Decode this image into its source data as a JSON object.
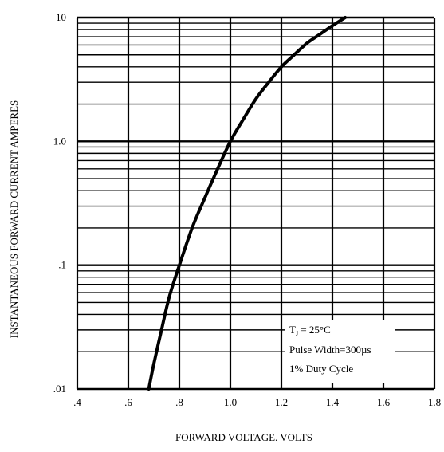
{
  "chart_data": {
    "type": "line",
    "xlabel": "FORWARD VOLTAGE. VOLTS",
    "ylabel": "INSTANTANEOUS FORWARD CURRENT AMPERES",
    "x_scale": "linear",
    "y_scale": "log",
    "xlim": [
      0.4,
      1.8
    ],
    "ylim": [
      0.01,
      10
    ],
    "x_ticks": [
      0.4,
      0.6,
      0.8,
      1.0,
      1.2,
      1.4,
      1.6,
      1.8
    ],
    "x_tick_labels": [
      ".4",
      ".6",
      ".8",
      "1.0",
      "1.2",
      "1.4",
      "1.6",
      "1.8"
    ],
    "y_ticks": [
      0.01,
      0.1,
      1,
      10
    ],
    "y_tick_labels": [
      ".01",
      ".1",
      "1.0",
      "10"
    ],
    "grid": true,
    "series": [
      {
        "x": [
          0.68,
          0.7,
          0.73,
          0.76,
          0.8,
          0.85,
          0.9,
          0.95,
          1.0,
          1.05,
          1.1,
          1.15,
          1.2,
          1.25,
          1.3,
          1.35,
          1.4,
          1.45
        ],
        "y": [
          0.01,
          0.016,
          0.03,
          0.055,
          0.1,
          0.2,
          0.35,
          0.6,
          1.0,
          1.5,
          2.2,
          3.0,
          4.0,
          5.0,
          6.2,
          7.3,
          8.6,
          10.0
        ]
      }
    ],
    "annotation": {
      "subscript_prefix": "T",
      "subscript": "J",
      "line1_rest": " = 25°C",
      "line2": "Pulse Width=300µs",
      "line3": "1% Duty Cycle"
    }
  }
}
